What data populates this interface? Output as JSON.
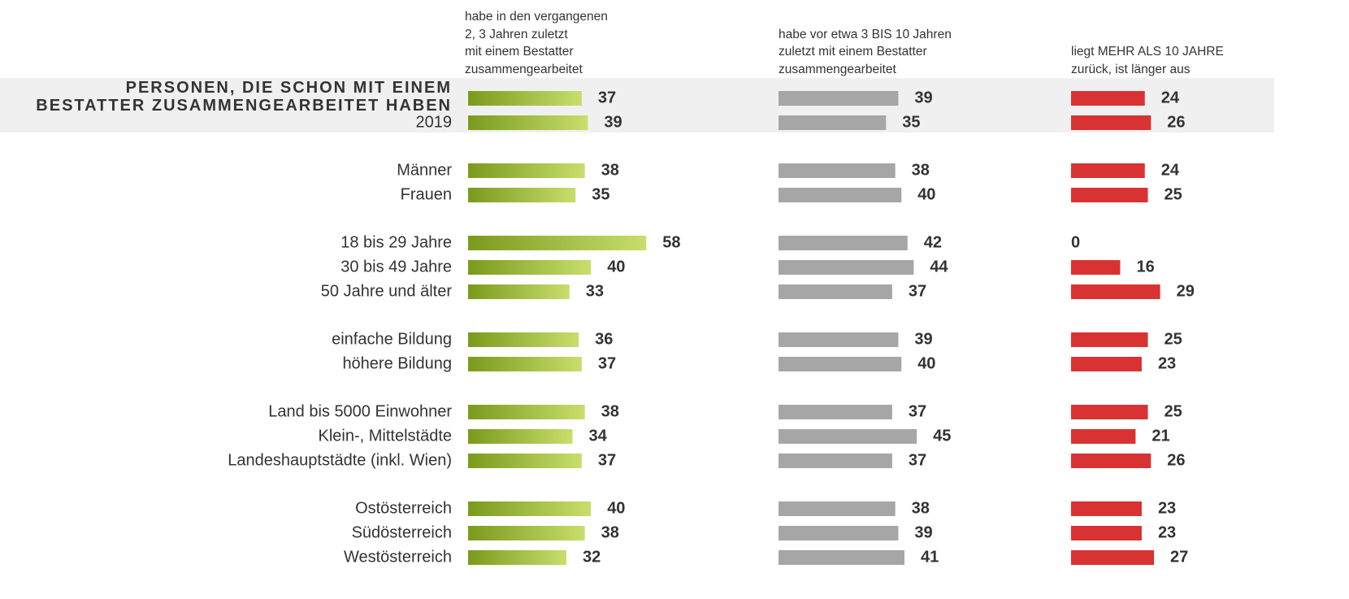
{
  "chart_data": {
    "type": "bar",
    "categories": [
      "PERSONEN, DIE SCHON MIT EINEM\nBESTATTER ZUSAMMENGEARBEITET HABEN",
      "2019",
      "Männer",
      "Frauen",
      "18 bis 29 Jahre",
      "30 bis 49 Jahre",
      "50 Jahre und älter",
      "einfache Bildung",
      "höhere Bildung",
      "Land bis 5000 Einwohner",
      "Klein-, Mittelstädte",
      "Landeshauptstädte (inkl. Wien)",
      "Ostösterreich",
      "Südösterreich",
      "Westösterreich"
    ],
    "series": [
      {
        "name": "habe in den vergangenen\n2, 3 Jahren zuletzt\nmit einem Bestatter\nzusammengearbeitet",
        "color": "#7a9a1c",
        "values": [
          37,
          39,
          38,
          35,
          58,
          40,
          33,
          36,
          37,
          38,
          34,
          37,
          40,
          38,
          32
        ]
      },
      {
        "name": "habe vor etwa 3 BIS 10 Jahren\nzuletzt mit einem Bestatter\nzusammengearbeitet",
        "color": "#a6a6a6",
        "values": [
          39,
          35,
          38,
          40,
          42,
          44,
          37,
          39,
          40,
          37,
          45,
          37,
          38,
          39,
          41
        ]
      },
      {
        "name": "liegt MEHR ALS 10 JAHRE\nzurück, ist länger aus",
        "color": "#d93232",
        "values": [
          24,
          26,
          24,
          25,
          0,
          16,
          29,
          25,
          23,
          25,
          21,
          26,
          23,
          23,
          27
        ]
      }
    ]
  }
}
